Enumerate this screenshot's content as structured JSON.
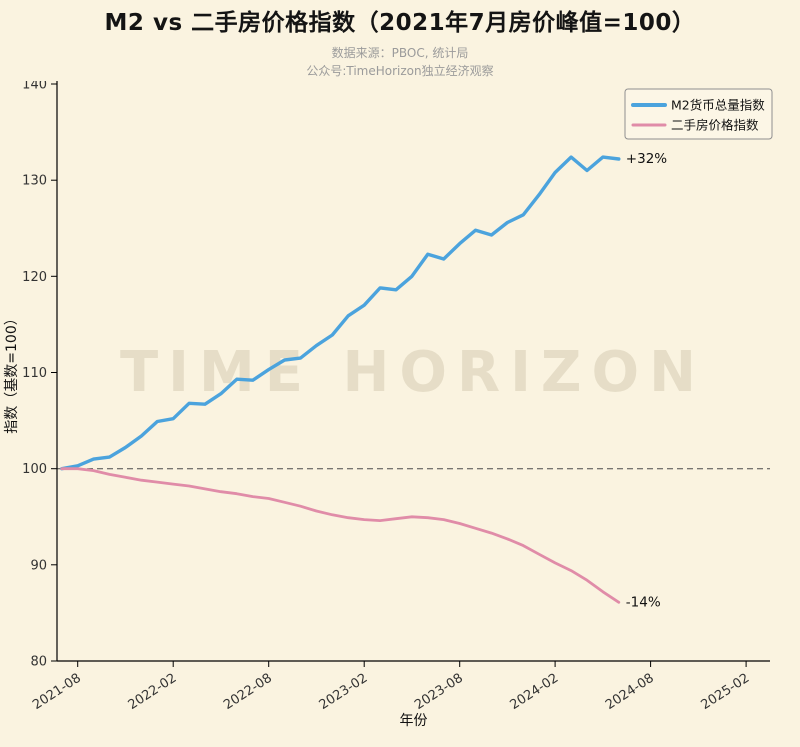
{
  "page": {
    "title": "M2 vs 二手房价格指数（2021年7月房价峰值=100）",
    "subtitle_line1": "数据来源：PBOC, 统计局",
    "subtitle_line2": "公众号:TimeHorizon独立经济观察"
  },
  "colors": {
    "background": "#faf3e0",
    "title": "#141414",
    "subtitle": "#9b9b9b",
    "axis": "#000000",
    "tick_label": "#333333",
    "reference_line": "#4a4a4a",
    "watermark": "#d9d0b8",
    "legend_bg": "#fcf6e6",
    "legend_border": "#8f8f8f",
    "m2_line": "#4ba3dd",
    "house_line": "#e08ca8"
  },
  "chart_data": {
    "type": "line",
    "title": "M2 vs 二手房价格指数（2021年7月房价峰值=100）",
    "subtitle1": "数据来源：PBOC, 统计局",
    "subtitle2": "公众号:TimeHorizon独立经济观察",
    "xlabel": "年份",
    "ylabel": "指数（基数=100）",
    "ylim": [
      80,
      140
    ],
    "yticks": [
      80,
      90,
      100,
      110,
      120,
      130,
      140
    ],
    "xticks": {
      "months": [
        1,
        7,
        13,
        19,
        25,
        31,
        37,
        43
      ],
      "labels": [
        "2021-08",
        "2022-02",
        "2022-08",
        "2023-02",
        "2023-08",
        "2024-02",
        "2024-08",
        "2025-02"
      ]
    },
    "x_start": "2021-07",
    "x_interval": "monthly",
    "reference_line_y": 100,
    "watermark": "TIME HORIZON",
    "legend_position": "upper-right",
    "grid": false,
    "series": [
      {
        "name": "M2货币总量指数",
        "color": "#4ba3dd",
        "annotation": "+32%",
        "values": [
          100.0,
          100.3,
          101.0,
          101.2,
          102.2,
          103.4,
          104.9,
          105.2,
          106.8,
          106.7,
          107.8,
          109.3,
          109.2,
          110.3,
          111.3,
          111.5,
          112.8,
          113.9,
          115.9,
          117.0,
          118.8,
          118.6,
          120.0,
          122.3,
          121.8,
          123.4,
          124.8,
          124.3,
          125.6,
          126.4,
          128.5,
          130.8,
          132.4,
          131.0,
          132.4,
          132.2
        ]
      },
      {
        "name": "二手房价格指数",
        "color": "#e08ca8",
        "annotation": "-14%",
        "values": [
          100.0,
          100.0,
          99.8,
          99.4,
          99.1,
          98.8,
          98.6,
          98.4,
          98.2,
          97.9,
          97.6,
          97.4,
          97.1,
          96.9,
          96.5,
          96.1,
          95.6,
          95.2,
          94.9,
          94.7,
          94.6,
          94.8,
          95.0,
          94.9,
          94.7,
          94.3,
          93.8,
          93.3,
          92.7,
          92.0,
          91.1,
          90.2,
          89.4,
          88.4,
          87.2,
          86.1
        ]
      }
    ]
  }
}
